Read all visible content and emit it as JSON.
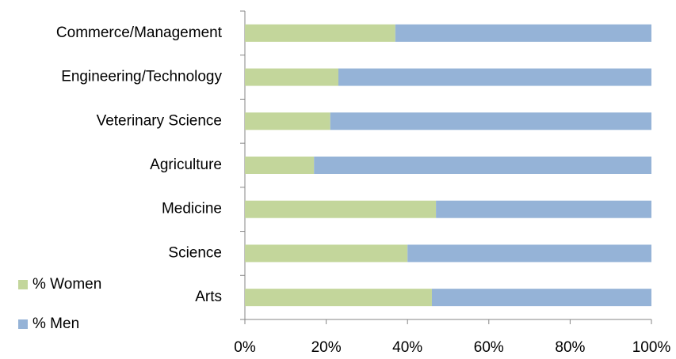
{
  "chart_data": {
    "type": "stacked_barh",
    "categories": [
      "Commerce/Management",
      "Engineering/Technology",
      "Veterinary Science",
      "Agriculture",
      "Medicine",
      "Science",
      "Arts"
    ],
    "series": [
      {
        "name": "% Women",
        "color": "#c3d69b",
        "values": [
          37,
          23,
          21,
          17,
          47,
          40,
          46
        ]
      },
      {
        "name": "% Men",
        "color": "#95b3d7",
        "values": [
          63,
          77,
          79,
          83,
          53,
          60,
          54
        ]
      }
    ],
    "xlim": [
      0,
      100
    ],
    "xticks": [
      {
        "value": 0,
        "label": "0%"
      },
      {
        "value": 20,
        "label": "20%"
      },
      {
        "value": 40,
        "label": "40%"
      },
      {
        "value": 60,
        "label": "60%"
      },
      {
        "value": 80,
        "label": "80%"
      },
      {
        "value": 100,
        "label": "100%"
      }
    ],
    "legend": "lower left"
  }
}
